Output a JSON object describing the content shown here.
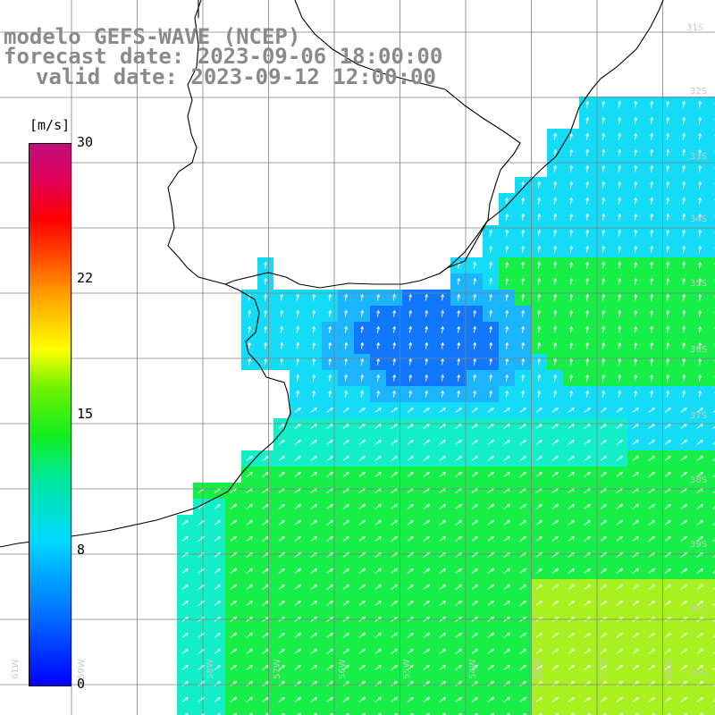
{
  "title": {
    "line1": "modelo GEFS-WAVE (NCEP)",
    "line2": "forecast date: 2023-09-06 18:00:00",
    "line3": "valid date: 2023-09-12 12:00:00"
  },
  "colorbar": {
    "unit": "[m/s]",
    "min": 0,
    "max": 30,
    "ticks": [
      "30",
      "22",
      "15",
      "8",
      "0"
    ],
    "tick_values": [
      30,
      22,
      15,
      8,
      0
    ],
    "colors": [
      "#0000ff",
      "#00d8ff",
      "#10ee20",
      "#ffff00",
      "#ff0000",
      "#c0107a"
    ]
  },
  "grid": {
    "lon_labels": [
      "61W",
      "59W",
      "58W",
      "57W",
      "56W",
      "55W",
      "54W",
      "53W",
      "52W",
      "51W"
    ],
    "lat_labels": [
      "31S",
      "32S",
      "33S",
      "34S",
      "35S",
      "36S",
      "37S",
      "38S",
      "39S",
      "40S",
      "41S"
    ]
  },
  "field": {
    "variable": "wind speed",
    "colors": {
      "dark_blue": "#0033ee",
      "mid_blue": "#1177ff",
      "light_blue": "#1ab4ff",
      "cyan": "#14dcf6",
      "teal": "#12eec8",
      "green": "#18ee48",
      "yellow_green": "#a8f020",
      "land": "#ffffff",
      "grid_line": "#808080",
      "coast": "#000000",
      "arrow": "#ffffff"
    }
  }
}
